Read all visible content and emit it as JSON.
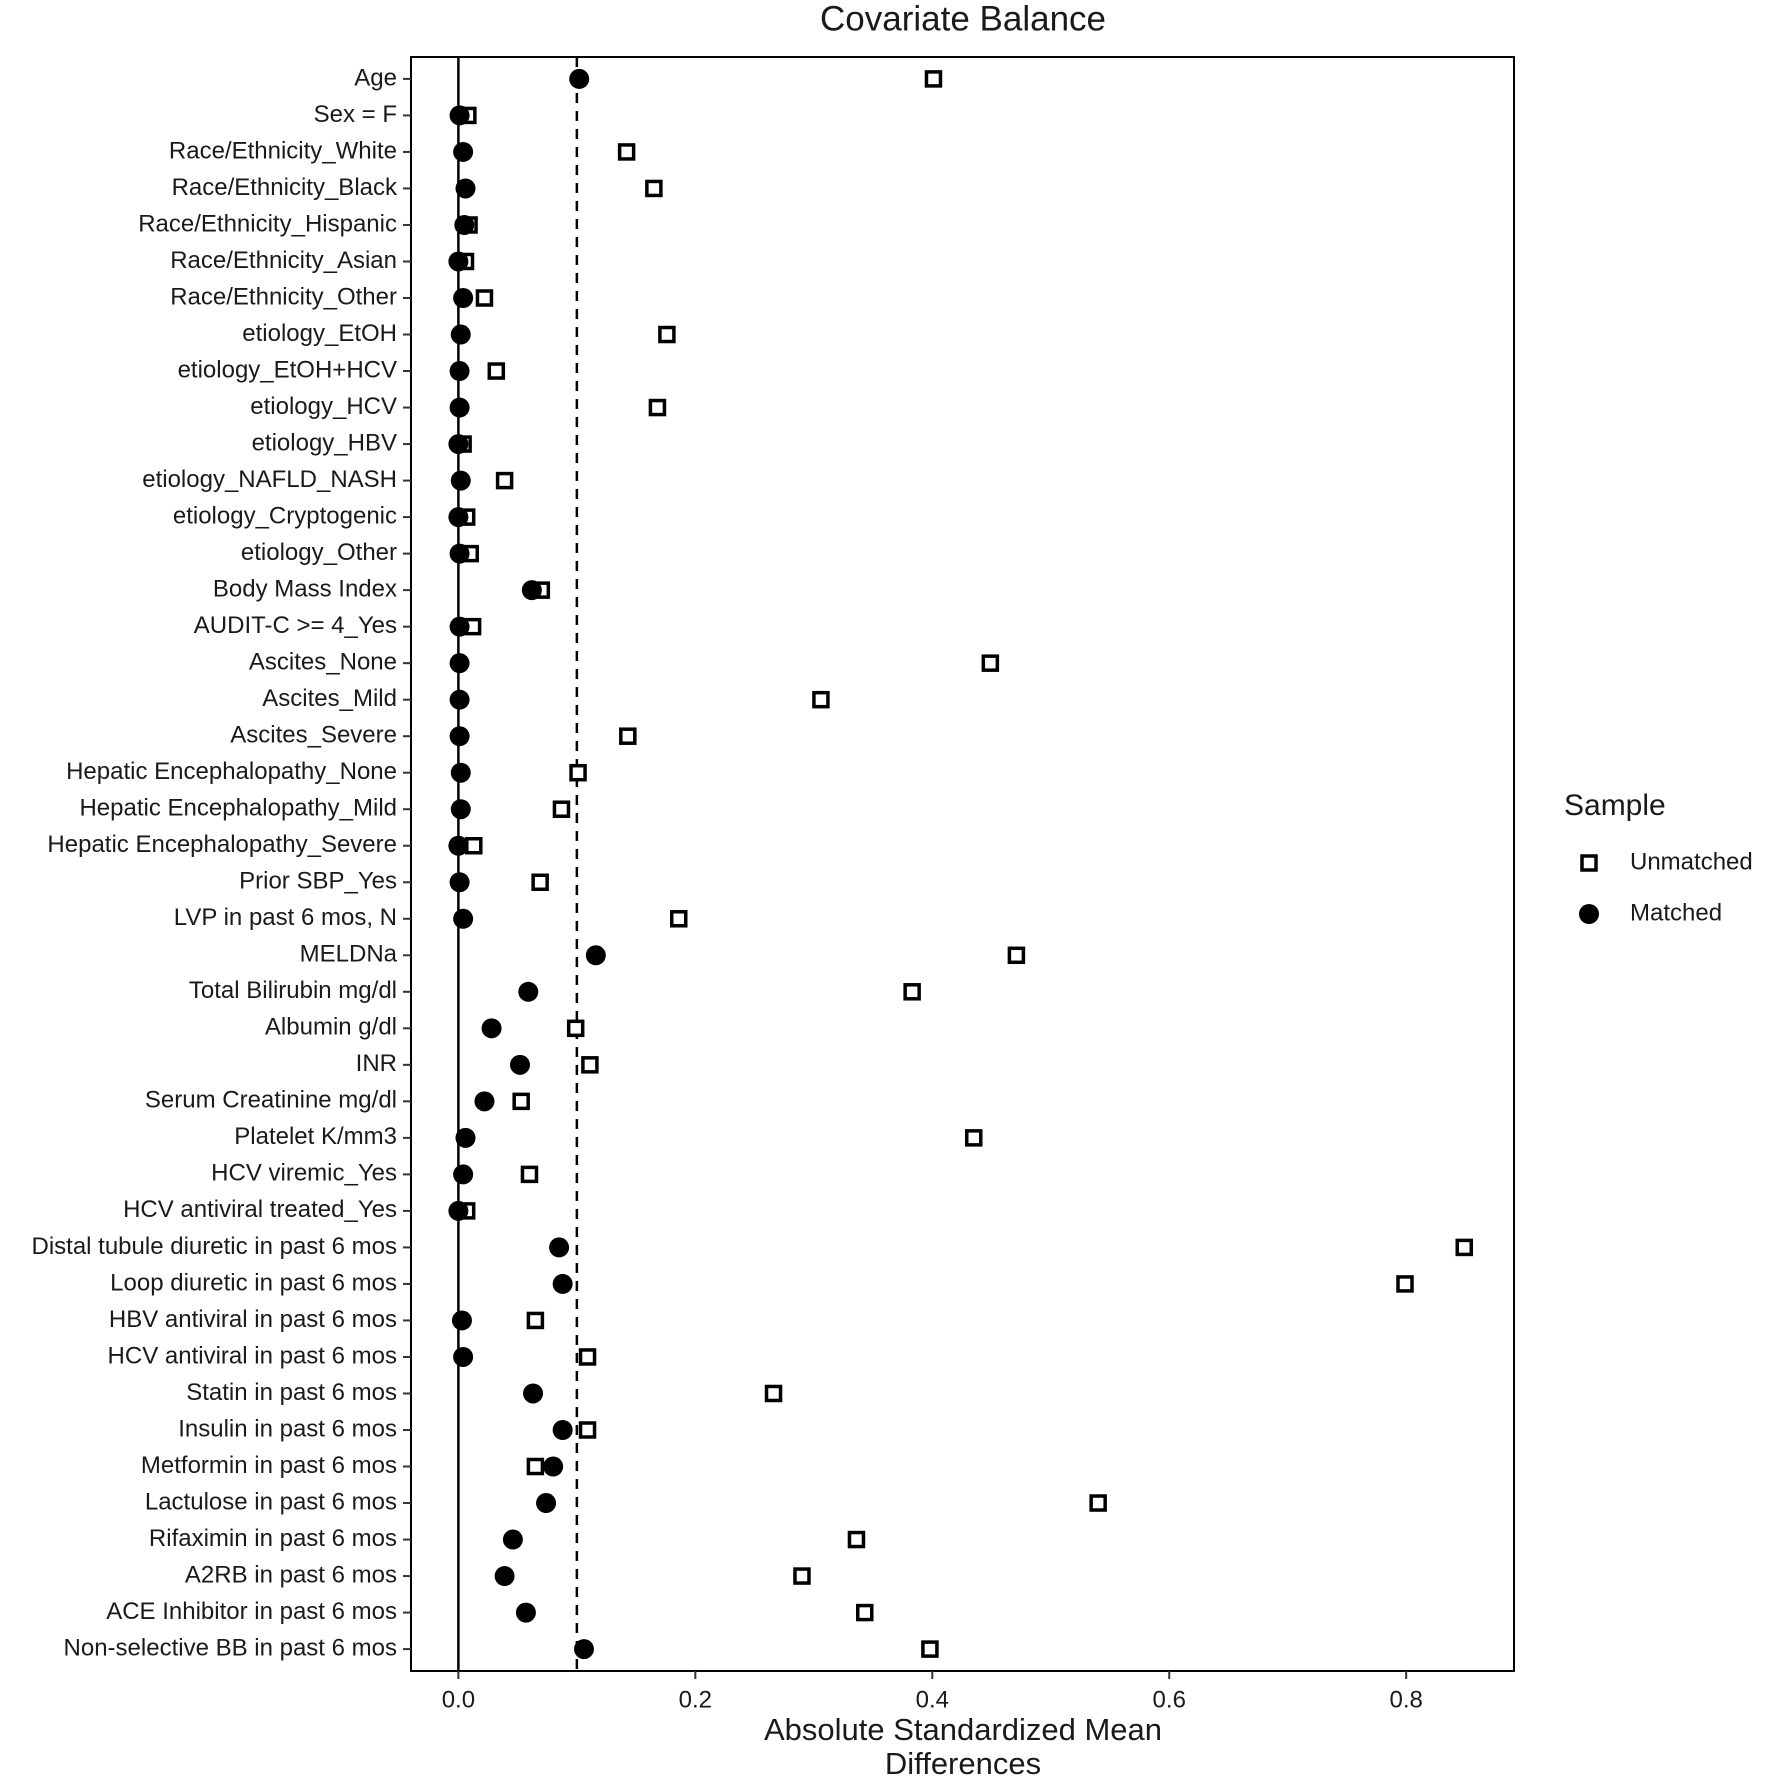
{
  "chart_data": {
    "type": "dot",
    "title": "Covariate Balance",
    "xlabel": [
      "Absolute Standardized Mean",
      "Differences"
    ],
    "categories": [
      "Age",
      "Sex = F",
      "Race/Ethnicity_White",
      "Race/Ethnicity_Black",
      "Race/Ethnicity_Hispanic",
      "Race/Ethnicity_Asian",
      "Race/Ethnicity_Other",
      "etiology_EtOH",
      "etiology_EtOH+HCV",
      "etiology_HCV",
      "etiology_HBV",
      "etiology_NAFLD_NASH",
      "etiology_Cryptogenic",
      "etiology_Other",
      "Body Mass Index",
      "AUDIT-C >= 4_Yes",
      "Ascites_None",
      "Ascites_Mild",
      "Ascites_Severe",
      "Hepatic Encephalopathy_None",
      "Hepatic Encephalopathy_Mild",
      "Hepatic Encephalopathy_Severe",
      "Prior SBP_Yes",
      "LVP in past 6 mos, N",
      "MELDNa",
      "Total Bilirubin mg/dl",
      "Albumin g/dl",
      "INR",
      "Serum Creatinine mg/dl",
      "Platelet K/mm3",
      "HCV viremic_Yes",
      "HCV antiviral treated_Yes",
      "Distal tubule diuretic in past 6 mos",
      "Loop diuretic in past 6 mos",
      "HBV antiviral in past 6 mos",
      "HCV antiviral in past 6 mos",
      "Statin in past 6 mos",
      "Insulin in past 6 mos",
      "Metformin in past 6 mos",
      "Lactulose in past 6 mos",
      "Rifaximin in past 6 mos",
      "A2RB in past 6 mos",
      "ACE Inhibitor in past 6 mos",
      "Non-selective BB in past 6 mos"
    ],
    "series": [
      {
        "name": "Unmatched",
        "color": "#000000",
        "marker": "square-open",
        "values": [
          0.401,
          0.008,
          0.142,
          0.165,
          0.009,
          0.006,
          0.022,
          0.176,
          0.032,
          0.168,
          0.004,
          0.039,
          0.007,
          0.01,
          0.07,
          0.012,
          0.449,
          0.306,
          0.143,
          0.101,
          0.087,
          0.013,
          0.069,
          0.186,
          0.471,
          0.383,
          0.099,
          0.111,
          0.053,
          0.435,
          0.06,
          0.007,
          0.849,
          0.799,
          0.065,
          0.109,
          0.266,
          0.109,
          0.065,
          0.54,
          0.336,
          0.29,
          0.343,
          0.398
        ]
      },
      {
        "name": "Matched",
        "color": "#000000",
        "marker": "circle",
        "values": [
          0.102,
          0.001,
          0.004,
          0.006,
          0.005,
          0.0,
          0.004,
          0.002,
          0.001,
          0.001,
          0.0,
          0.002,
          0.0,
          0.001,
          0.062,
          0.001,
          0.001,
          0.001,
          0.001,
          0.002,
          0.002,
          0.0,
          0.001,
          0.004,
          0.116,
          0.059,
          0.028,
          0.052,
          0.022,
          0.006,
          0.004,
          0.0,
          0.085,
          0.088,
          0.003,
          0.004,
          0.063,
          0.088,
          0.08,
          0.074,
          0.046,
          0.039,
          0.057,
          0.106
        ]
      }
    ],
    "xlim": [
      -0.04,
      0.891
    ],
    "xticks": [
      {
        "value": 0,
        "label": "0.0"
      },
      0.2,
      0.4,
      0.6,
      0.8
    ],
    "threshold": 0.1,
    "legend_title": "Sample",
    "legend": "right",
    "grid": false
  }
}
